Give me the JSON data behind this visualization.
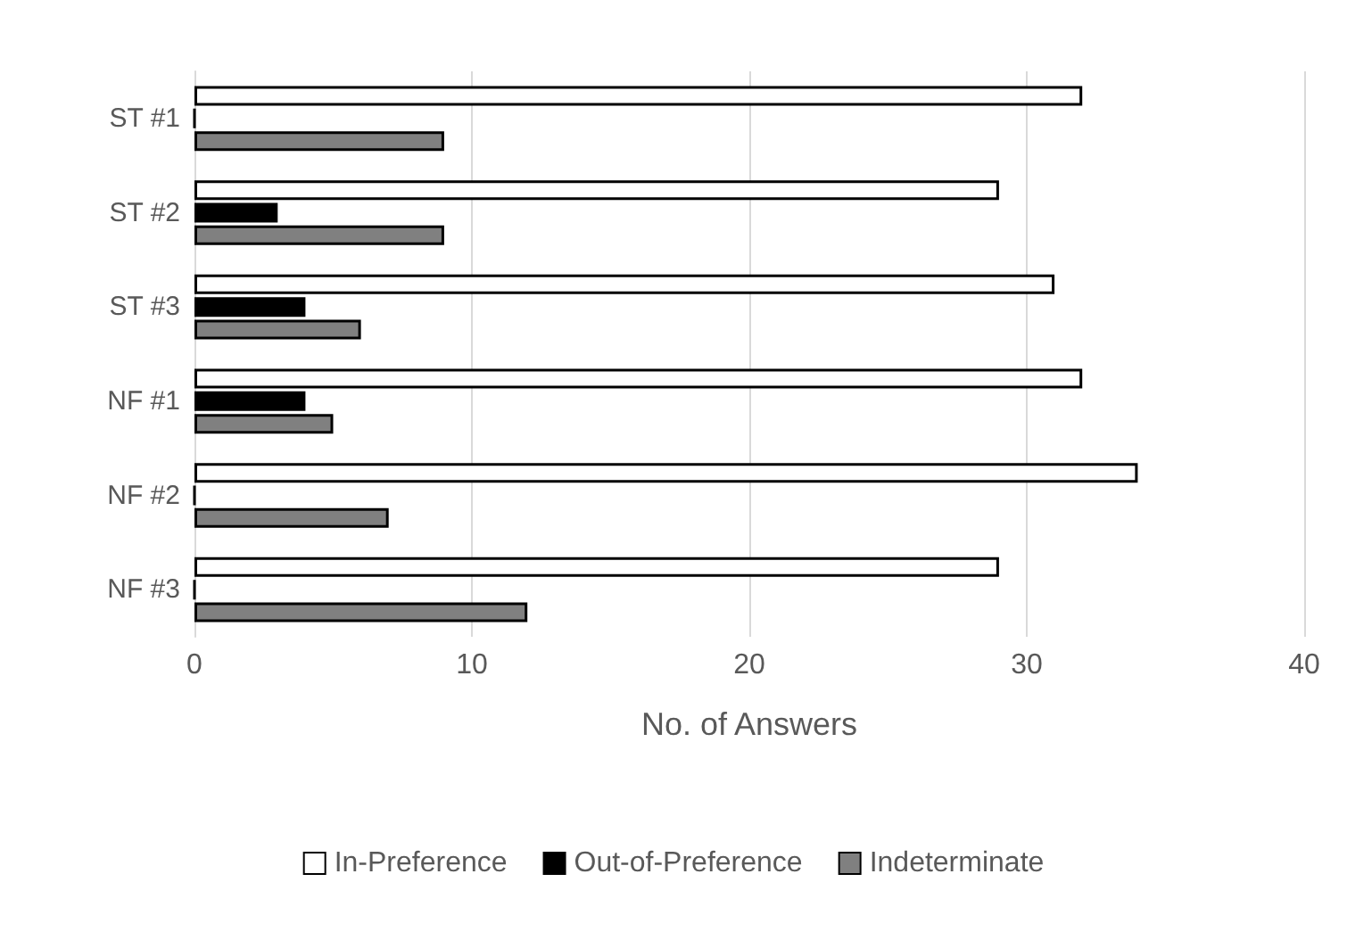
{
  "chart_data": {
    "type": "bar",
    "orientation": "horizontal",
    "xlabel": "No. of Answers",
    "categories": [
      "ST #1",
      "ST #2",
      "ST #3",
      "NF #1",
      "NF #2",
      "NF #3"
    ],
    "series": [
      {
        "name": "In-Preference",
        "color": "#ffffff",
        "values": [
          32,
          29,
          31,
          32,
          34,
          29
        ]
      },
      {
        "name": "Out-of-Preference",
        "color": "#000000",
        "values": [
          0,
          3,
          4,
          4,
          0,
          0
        ]
      },
      {
        "name": "Indeterminate",
        "color": "#808080",
        "values": [
          9,
          9,
          6,
          5,
          7,
          12
        ]
      }
    ],
    "xlim": [
      0,
      40
    ],
    "xticks": [
      0,
      10,
      20,
      30,
      40
    ],
    "grid": "x",
    "legend": "bottom"
  }
}
